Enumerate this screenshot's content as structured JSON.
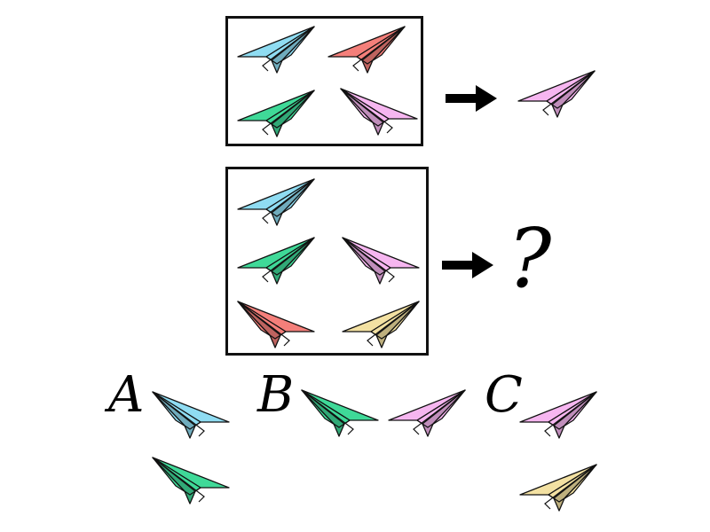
{
  "colors": {
    "blue": "#8fdcf2",
    "red": "#f47f7a",
    "green": "#3fd998",
    "pink": "#f6b6f0",
    "yellow": "#f3e1a2",
    "outline": "#111111"
  },
  "puzzle": {
    "example": {
      "planes": [
        "blue",
        "red",
        "green",
        "pink"
      ],
      "result": [
        "pink"
      ]
    },
    "question": {
      "planes": [
        "blue",
        "green",
        "pink",
        "red",
        "yellow"
      ],
      "result_symbol": "?"
    }
  },
  "options": [
    {
      "letter": "A",
      "planes": [
        "blue",
        "green"
      ]
    },
    {
      "letter": "B",
      "planes": [
        "green",
        "pink"
      ]
    },
    {
      "letter": "C",
      "planes": [
        "pink",
        "yellow"
      ]
    }
  ],
  "icons": {
    "arrow": "right-arrow-icon",
    "plane": "paper-plane-icon"
  }
}
